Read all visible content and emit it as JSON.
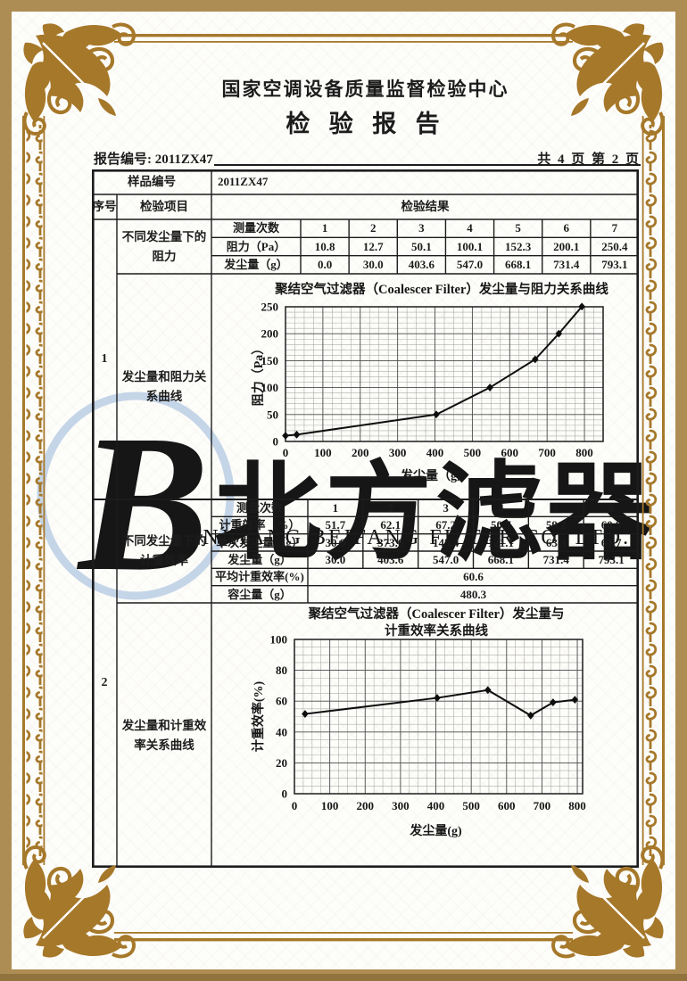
{
  "document": {
    "center_name": "国家空调设备质量监督检验中心",
    "report_title": "检 验 报 告",
    "report_no": "报告编号: 2011ZX47",
    "page_info": "共 4 页 第 2 页",
    "sample_no_label": "样品编号",
    "sample_no_value": "2011ZX47",
    "col_serial": "序号",
    "col_item": "检验项目",
    "col_result": "检验结果"
  },
  "section1": {
    "serial": "1",
    "item1": "不同发尘量下的阻力",
    "item2": "发尘量和阻力关系曲线",
    "table": {
      "row_labels": [
        "测量次数",
        "阻力（Pa）",
        "发尘量（g）"
      ],
      "rows": [
        [
          "1",
          "2",
          "3",
          "4",
          "5",
          "6",
          "7"
        ],
        [
          "10.8",
          "12.7",
          "50.1",
          "100.1",
          "152.3",
          "200.1",
          "250.4"
        ],
        [
          "0.0",
          "30.0",
          "403.6",
          "547.0",
          "668.1",
          "731.4",
          "793.1"
        ]
      ]
    }
  },
  "section2": {
    "serial": "2",
    "item1": "不同发尘量下的计重效率",
    "item2": "发尘量和计重效率关系曲线",
    "table": {
      "row_labels": [
        "测量次数",
        "计重效率（%）",
        "单次发尘量（g）",
        "发尘量（g）"
      ],
      "rows": [
        [
          "1",
          "2",
          "3",
          "4",
          "5",
          "6"
        ],
        [
          "51.7",
          "62.1",
          "67.2",
          "50.7",
          "59.2",
          "60.9"
        ],
        [
          "30.0",
          "373.6",
          "143.4",
          "121.1",
          "63.3",
          "61.7"
        ],
        [
          "30.0",
          "403.6",
          "547.0",
          "668.1",
          "731.4",
          "793.1"
        ]
      ],
      "summary_labels": [
        "平均计重效率(%)",
        "容尘量（g）"
      ],
      "summary_values": [
        "60.6",
        "480.3"
      ]
    }
  },
  "watermark": {
    "logo_letter": "B",
    "cn_text": "北方滤器",
    "en_text": "XINXIANG BEIFANG FILTER CO. LTD."
  },
  "colors": {
    "frame_gold": "#a6782a",
    "border_tan": "#ae8d54",
    "ink": "#1c1c1c",
    "watermark_blue": "#c2d1e5",
    "watermark_gray": "#c8c8c8"
  },
  "chart_data": [
    {
      "type": "line",
      "title_lines": [
        "聚结空气过滤器（Coalescer Filter）发尘量与阻力关系曲线"
      ],
      "xlabel": "发尘量（g）",
      "ylabel": "阻力（Pa）",
      "x": [
        0,
        30.0,
        403.6,
        547.0,
        668.1,
        731.4,
        793.1
      ],
      "y": [
        10.8,
        12.7,
        50.1,
        100.1,
        152.3,
        200.1,
        250.4
      ],
      "xlim": [
        0,
        850
      ],
      "ylim": [
        0,
        250
      ],
      "xticks": [
        0,
        100,
        200,
        300,
        400,
        500,
        600,
        700,
        800
      ],
      "yticks": [
        0,
        50,
        100,
        150,
        200,
        250
      ],
      "grid": true,
      "legend": "none",
      "marker": "diamond"
    },
    {
      "type": "line",
      "title_lines": [
        "聚结空气过滤器（Coalescer Filter）发尘量与",
        "计重效率关系曲线"
      ],
      "xlabel": "发尘量(g)",
      "ylabel": "计重效率(%)",
      "x": [
        30.0,
        403.6,
        547.0,
        668.1,
        731.4,
        793.1
      ],
      "y": [
        51.7,
        62.1,
        67.2,
        50.7,
        59.2,
        60.9
      ],
      "xlim": [
        0,
        815
      ],
      "ylim": [
        0,
        100
      ],
      "xticks": [
        0,
        100,
        200,
        300,
        400,
        500,
        600,
        700,
        800
      ],
      "yticks": [
        0,
        20,
        40,
        60,
        80,
        100
      ],
      "grid": true,
      "legend": "none",
      "marker": "diamond"
    }
  ]
}
